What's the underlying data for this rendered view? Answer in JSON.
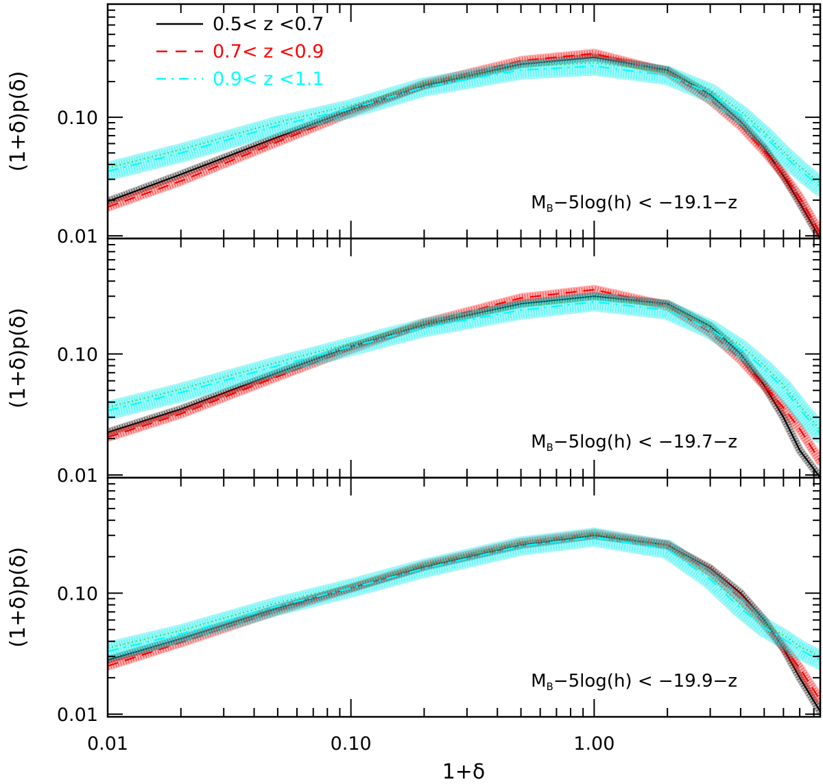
{
  "chart_data": {
    "type": "line",
    "xscale": "log",
    "yscale": "log",
    "xlim": [
      0.01,
      8.5
    ],
    "ylim": [
      0.0095,
      0.9
    ],
    "xlabel": "1+δ",
    "ylabel": "(1+δ)p(δ)",
    "xticks": [
      0.01,
      0.1,
      1.0
    ],
    "xtick_labels": [
      "0.01",
      "0.10",
      "1.00"
    ],
    "yticks": [
      0.01,
      0.1
    ],
    "ytick_labels": [
      "0.01",
      "0.10"
    ],
    "legend": {
      "placement": "top-left",
      "entries": [
        {
          "label": "0.5< z <0.7",
          "color": "#000000",
          "style": "solid"
        },
        {
          "label": "0.7< z <0.9",
          "color": "#ff0000",
          "style": "dashed"
        },
        {
          "label": "0.9< z <1.1",
          "color": "#00ffff",
          "style": "dash-dot"
        }
      ]
    },
    "panels": [
      {
        "annotation": "M_B−5log(h) < −19.1−z",
        "annotation_parts": {
          "m": "M",
          "sub": "B",
          "rest": "−5log(h) < −19.1−z"
        },
        "x": [
          0.01,
          0.02,
          0.05,
          0.1,
          0.2,
          0.5,
          1.0,
          2.0,
          3.0,
          4.0,
          5.0,
          6.0,
          7.0,
          8.5
        ],
        "series": [
          {
            "name": "0.5< z <0.7",
            "values": [
              0.0195,
              0.033,
              0.068,
              0.115,
              0.185,
              0.28,
              0.32,
              0.25,
              0.155,
              0.092,
              0.055,
              0.032,
              0.019,
              0.0095
            ]
          },
          {
            "name": "0.7< z <0.9",
            "values": [
              0.0175,
              0.029,
              0.062,
              0.11,
              0.19,
              0.3,
              0.345,
              0.24,
              0.14,
              0.085,
              0.052,
              0.033,
              0.021,
              0.0105
            ]
          },
          {
            "name": "0.9< z <1.1",
            "values": [
              0.035,
              0.05,
              0.085,
              0.118,
              0.18,
              0.25,
              0.27,
              0.225,
              0.16,
              0.105,
              0.07,
              0.048,
              0.036,
              0.026
            ]
          }
        ]
      },
      {
        "annotation": "M_B−5log(h) < −19.7−z",
        "annotation_parts": {
          "m": "M",
          "sub": "B",
          "rest": "−5log(h) < −19.7−z"
        },
        "x": [
          0.01,
          0.02,
          0.05,
          0.1,
          0.2,
          0.5,
          1.0,
          2.0,
          3.0,
          4.0,
          5.0,
          6.0,
          7.0,
          8.5
        ],
        "series": [
          {
            "name": "0.5< z <0.7",
            "values": [
              0.0225,
              0.035,
              0.07,
              0.115,
              0.175,
              0.26,
              0.3,
              0.26,
              0.17,
              0.1,
              0.055,
              0.03,
              0.016,
              0.0095
            ]
          },
          {
            "name": "0.7< z <0.9",
            "values": [
              0.0205,
              0.032,
              0.065,
              0.11,
              0.18,
              0.29,
              0.34,
              0.25,
              0.15,
              0.09,
              0.055,
              0.036,
              0.024,
              0.013
            ]
          },
          {
            "name": "0.9< z <1.1",
            "values": [
              0.034,
              0.048,
              0.08,
              0.115,
              0.165,
              0.23,
              0.27,
              0.23,
              0.16,
              0.11,
              0.075,
              0.052,
              0.035,
              0.022
            ]
          }
        ]
      },
      {
        "annotation": "M_B−5log(h) < −19.9−z",
        "annotation_parts": {
          "m": "M",
          "sub": "B",
          "rest": "−5log(h) < −19.9−z"
        },
        "x": [
          0.01,
          0.02,
          0.05,
          0.1,
          0.2,
          0.5,
          1.0,
          2.0,
          3.0,
          4.0,
          5.0,
          6.0,
          7.0,
          8.5
        ],
        "series": [
          {
            "name": "0.5< z <0.7",
            "values": [
              0.028,
              0.042,
              0.075,
              0.11,
              0.165,
              0.25,
              0.3,
              0.25,
              0.16,
              0.1,
              0.06,
              0.035,
              0.02,
              0.0105
            ]
          },
          {
            "name": "0.7< z <0.9",
            "values": [
              0.025,
              0.039,
              0.072,
              0.11,
              0.17,
              0.26,
              0.31,
              0.25,
              0.15,
              0.09,
              0.056,
              0.036,
              0.024,
              0.013
            ]
          },
          {
            "name": "0.9< z <1.1",
            "values": [
              0.033,
              0.046,
              0.078,
              0.11,
              0.16,
              0.245,
              0.29,
              0.23,
              0.13,
              0.075,
              0.052,
              0.042,
              0.034,
              0.028
            ]
          }
        ]
      }
    ]
  }
}
